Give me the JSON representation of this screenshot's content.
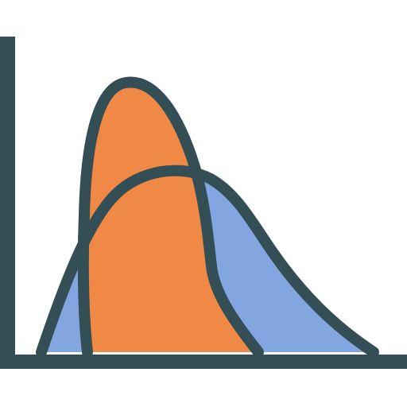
{
  "icon": {
    "name": "distribution-curves-icon",
    "description_colors": {
      "outline": "#334f55",
      "orange_fill": "#f08945",
      "blue_fill": "#83a6e1",
      "background": "#ffffff"
    }
  }
}
